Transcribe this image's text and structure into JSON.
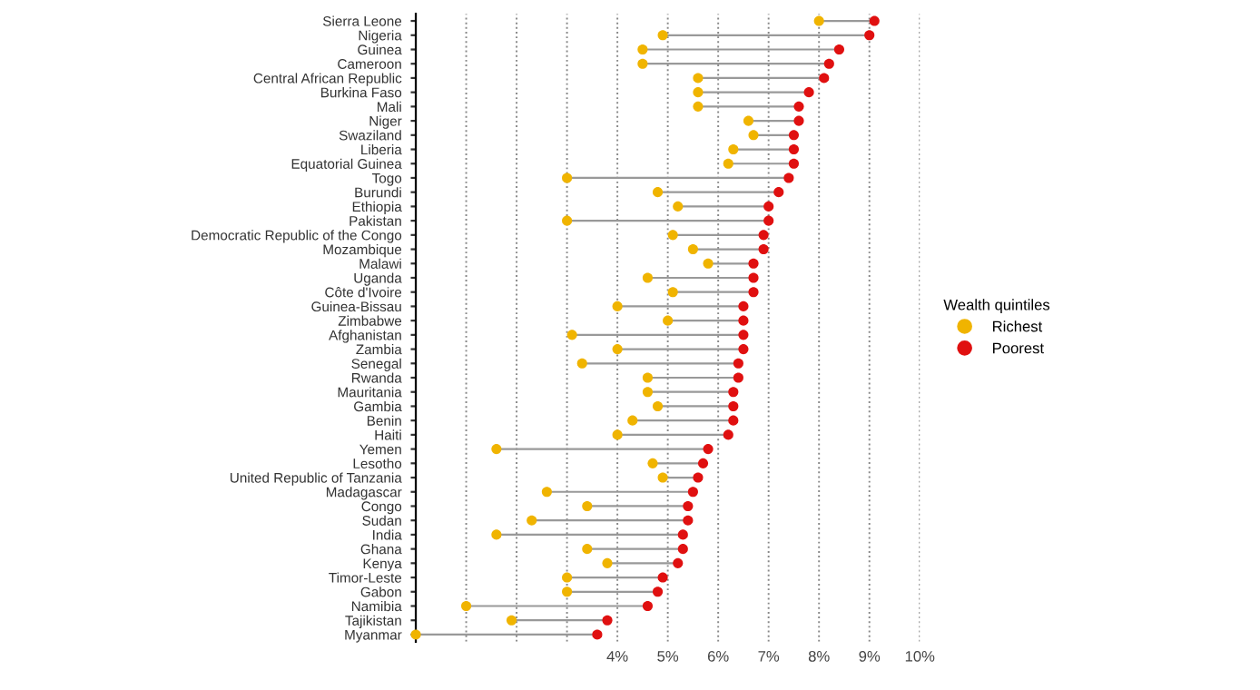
{
  "chart_data": {
    "type": "scatter",
    "orientation": "horizontal",
    "categories": [
      "Sierra Leone",
      "Nigeria",
      "Guinea",
      "Cameroon",
      "Central African Republic",
      "Burkina Faso",
      "Mali",
      "Niger",
      "Swaziland",
      "Liberia",
      "Equatorial Guinea",
      "Togo",
      "Burundi",
      "Ethiopia",
      "Pakistan",
      "Democratic Republic of the Congo",
      "Mozambique",
      "Malawi",
      "Uganda",
      "Côte d'Ivoire",
      "Guinea-Bissau",
      "Zimbabwe",
      "Afghanistan",
      "Zambia",
      "Senegal",
      "Rwanda",
      "Mauritania",
      "Gambia",
      "Benin",
      "Haiti",
      "Yemen",
      "Lesotho",
      "United Republic of Tanzania",
      "Madagascar",
      "Congo",
      "Sudan",
      "India",
      "Ghana",
      "Kenya",
      "Timor-Leste",
      "Gabon",
      "Namibia",
      "Tajikistan",
      "Myanmar"
    ],
    "series": [
      {
        "name": "Richest",
        "color": "#f0b400",
        "values": [
          8.0,
          4.9,
          4.5,
          4.5,
          5.6,
          5.6,
          5.6,
          6.6,
          6.7,
          6.3,
          6.2,
          3.0,
          4.8,
          5.2,
          3.0,
          5.1,
          5.5,
          5.8,
          4.6,
          5.1,
          4.0,
          5.0,
          3.1,
          4.0,
          3.3,
          4.6,
          4.6,
          4.8,
          4.3,
          4.0,
          1.6,
          4.7,
          4.9,
          2.6,
          3.4,
          2.3,
          1.6,
          3.4,
          3.8,
          3.0,
          3.0,
          1.0,
          1.9,
          0.0
        ]
      },
      {
        "name": "Poorest",
        "color": "#e01010",
        "values": [
          9.1,
          9.0,
          8.4,
          8.2,
          8.1,
          7.8,
          7.6,
          7.6,
          7.5,
          7.5,
          7.5,
          7.4,
          7.2,
          7.0,
          7.0,
          6.9,
          6.9,
          6.7,
          6.7,
          6.7,
          6.5,
          6.5,
          6.5,
          6.5,
          6.4,
          6.4,
          6.3,
          6.3,
          6.3,
          6.2,
          5.8,
          5.7,
          5.6,
          5.5,
          5.4,
          5.4,
          5.3,
          5.3,
          5.2,
          4.9,
          4.8,
          4.6,
          3.8,
          3.6
        ]
      }
    ],
    "xlim": [
      0,
      10
    ],
    "xticks": [
      {
        "value": 0,
        "label": null
      },
      {
        "value": 1,
        "label": null
      },
      {
        "value": 2,
        "label": null
      },
      {
        "value": 3,
        "label": null
      },
      {
        "value": 4,
        "label": "4%"
      },
      {
        "value": 5,
        "label": "5%"
      },
      {
        "value": 6,
        "label": "6%"
      },
      {
        "value": 7,
        "label": "7%"
      },
      {
        "value": 8,
        "label": "8%"
      },
      {
        "value": 9,
        "label": "9%"
      },
      {
        "value": 10,
        "label": "10%"
      }
    ],
    "grid": "x",
    "marker": "circle",
    "legend": "right",
    "legend_title": "Wealth quintiles"
  }
}
